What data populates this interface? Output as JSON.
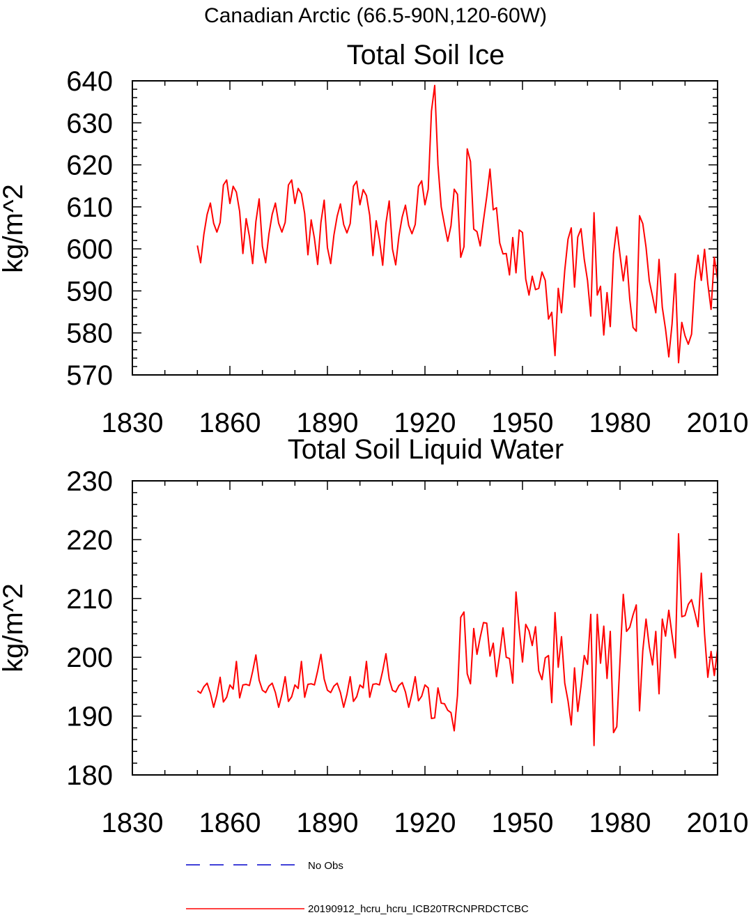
{
  "figure_title": "Canadian Arctic (66.5-90N,120-60W)",
  "colors": {
    "series": "#ff0000",
    "no_obs": "#0000cc",
    "axis": "#000000"
  },
  "legend": {
    "items": [
      {
        "label": "No Obs",
        "color": "#0000cc",
        "style": "dashed"
      },
      {
        "label": "20190912_hcru_hcru_ICB20TRCNPRDCTCBC",
        "color": "#ff0000",
        "style": "solid"
      }
    ]
  },
  "chart_data": [
    {
      "type": "line",
      "title": "Total Soil Ice",
      "xlabel": "",
      "ylabel": "kg/m^2",
      "xlim": [
        1830,
        2010
      ],
      "ylim": [
        570,
        640
      ],
      "xticks": [
        1830,
        1860,
        1890,
        1920,
        1950,
        1980,
        2010
      ],
      "yticks": [
        570,
        580,
        590,
        600,
        610,
        620,
        630,
        640
      ],
      "x_start": 1850,
      "series": [
        {
          "name": "20190912_hcru_hcru_ICB20TRCNPRDCTCBC",
          "values": [
            600.8,
            596.7,
            603.5,
            608.2,
            610.9,
            606.1,
            604.0,
            606.3,
            615.2,
            616.4,
            610.8,
            614.9,
            613.5,
            608.9,
            598.9,
            607.2,
            603.0,
            596.5,
            606.5,
            611.9,
            600.6,
            596.7,
            603.5,
            608.2,
            610.9,
            606.1,
            604.0,
            606.3,
            615.2,
            616.4,
            610.8,
            614.4,
            613.1,
            608.4,
            598.6,
            606.9,
            602.5,
            596.3,
            606.3,
            611.6,
            600.3,
            596.5,
            603.3,
            607.8,
            610.7,
            605.8,
            603.8,
            606.0,
            614.9,
            616.1,
            610.5,
            614.1,
            612.7,
            608.0,
            598.4,
            606.7,
            602.2,
            596.1,
            606.1,
            611.4,
            600.0,
            596.2,
            603.1,
            607.6,
            610.4,
            605.6,
            603.6,
            605.8,
            614.9,
            616.2,
            610.5,
            614.2,
            632.8,
            638.9,
            620.0,
            610.0,
            605.8,
            601.8,
            605.5,
            614.2,
            613.0,
            598.0,
            600.5,
            623.8,
            620.8,
            604.7,
            604.1,
            600.7,
            606.8,
            612.4,
            619.0,
            609.3,
            609.8,
            601.4,
            598.8,
            598.9,
            593.8,
            602.7,
            594.3,
            604.5,
            603.9,
            592.8,
            589.0,
            593.5,
            590.3,
            590.6,
            594.5,
            592.5,
            583.3,
            584.9,
            574.6,
            590.6,
            584.8,
            594.9,
            602.3,
            605.0,
            590.9,
            602.8,
            604.8,
            597.5,
            592.5,
            584.0,
            608.6,
            589.0,
            591.1,
            579.5,
            589.6,
            581.5,
            598.8,
            605.2,
            598.5,
            592.4,
            598.3,
            588.0,
            581.3,
            580.4,
            607.9,
            606.0,
            600.4,
            592.4,
            588.7,
            584.8,
            597.5,
            586.1,
            580.9,
            574.3,
            582.1,
            594.1,
            572.9,
            582.5,
            579.3,
            577.3,
            579.7,
            592.3,
            598.5,
            592.5,
            599.9,
            591.7,
            585.6,
            598.0,
            592.7
          ]
        }
      ]
    },
    {
      "type": "line",
      "title": "Total Soil Liquid Water",
      "xlabel": "",
      "ylabel": "kg/m^2",
      "xlim": [
        1830,
        2010
      ],
      "ylim": [
        180,
        230
      ],
      "xticks": [
        1830,
        1860,
        1890,
        1920,
        1950,
        1980,
        2010
      ],
      "yticks": [
        180,
        190,
        200,
        210,
        220,
        230
      ],
      "x_start": 1850,
      "series": [
        {
          "name": "20190912_hcru_hcru_ICB20TRCNPRDCTCBC",
          "values": [
            194.3,
            193.9,
            195.0,
            195.6,
            193.9,
            191.5,
            193.6,
            196.6,
            192.4,
            193.2,
            195.3,
            194.6,
            199.3,
            193.1,
            195.3,
            195.4,
            195.2,
            197.6,
            200.4,
            196.1,
            194.4,
            194.0,
            195.1,
            195.6,
            194.0,
            191.5,
            193.7,
            196.7,
            192.5,
            193.3,
            195.3,
            194.7,
            199.3,
            193.2,
            195.4,
            195.5,
            195.3,
            197.7,
            200.5,
            196.3,
            194.4,
            194.0,
            195.1,
            195.6,
            194.0,
            191.5,
            193.7,
            196.7,
            192.5,
            193.3,
            195.3,
            194.8,
            199.3,
            193.2,
            195.4,
            195.5,
            195.3,
            197.7,
            200.6,
            196.3,
            194.4,
            194.1,
            195.2,
            195.7,
            194.1,
            191.5,
            193.8,
            196.7,
            192.6,
            193.4,
            195.3,
            194.8,
            189.6,
            189.7,
            194.8,
            192.2,
            192.1,
            191.0,
            190.6,
            187.5,
            193.5,
            206.8,
            207.7,
            197.2,
            195.5,
            204.9,
            200.5,
            203.4,
            205.9,
            205.8,
            200.2,
            202.4,
            196.7,
            200.5,
            205.0,
            200.0,
            199.8,
            195.6,
            211.1,
            204.7,
            199.2,
            205.6,
            204.5,
            202.0,
            205.2,
            197.7,
            196.2,
            199.9,
            200.3,
            192.3,
            207.6,
            198.3,
            203.5,
            195.6,
            192.6,
            188.5,
            198.2,
            190.8,
            195.1,
            200.3,
            198.8,
            207.3,
            185.0,
            207.3,
            199.0,
            205.3,
            196.4,
            204.4,
            187.2,
            188.2,
            199.5,
            210.7,
            204.4,
            205.1,
            207.2,
            208.9,
            190.9,
            201.1,
            206.5,
            201.8,
            198.7,
            204.4,
            193.8,
            206.5,
            203.6,
            208.0,
            203.8,
            199.9,
            221.0,
            206.9,
            207.1,
            209.0,
            209.8,
            207.6,
            205.2,
            214.3,
            204.0,
            196.6,
            201.0,
            196.9,
            201.4
          ]
        }
      ]
    }
  ]
}
